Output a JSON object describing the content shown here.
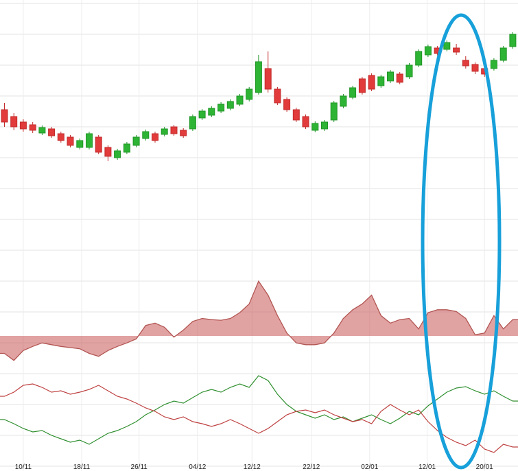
{
  "colors": {
    "background": "#ffffff",
    "grid": "#e3e3e3",
    "grid_vertical": "#ececec",
    "candle_up_fill": "#2eb434",
    "candle_up_stroke": "#1f9426",
    "candle_down_fill": "#e23b3b",
    "candle_down_stroke": "#c12b2b",
    "hist_fill": "rgba(200,85,85,0.55)",
    "hist_stroke": "#b25653",
    "osc_green": "#2f8f2f",
    "osc_red": "#bf4040",
    "annotation": "#17a0da",
    "axis_text": "#222222"
  },
  "chart_data": {
    "type": "candlestick-multi-pane",
    "title": "",
    "grid": true,
    "x_axis": {
      "tick_labels": [
        "10/11",
        "18/11",
        "26/11",
        "04/12",
        "12/12",
        "22/12",
        "02/01",
        "12/01",
        "20/01"
      ],
      "tick_candle_indices": [
        2,
        8.2,
        14.3,
        20.5,
        26.3,
        32.6,
        38.8,
        44.9,
        51
      ]
    },
    "panes": [
      {
        "name": "price",
        "type": "candlestick",
        "value_units": "relative (no visible price axis)",
        "value_range": [
          0,
          100
        ],
        "candles": [
          [
            60,
            62.5,
            53.75,
            55.5
          ],
          [
            57.5,
            58.75,
            52.5,
            53.75
          ],
          [
            55.5,
            56.5,
            52,
            53
          ],
          [
            54.5,
            55.5,
            51.5,
            52.5
          ],
          [
            51.5,
            54.25,
            50.75,
            53.5
          ],
          [
            53,
            53.75,
            49.75,
            50.5
          ],
          [
            51.25,
            52,
            48,
            48.75
          ],
          [
            50,
            50.75,
            46.25,
            47
          ],
          [
            46.25,
            49.5,
            45.5,
            48.75
          ],
          [
            46.25,
            52,
            45.5,
            51.25
          ],
          [
            50,
            50.75,
            43.75,
            44.5
          ],
          [
            46.25,
            47,
            41.25,
            43
          ],
          [
            42.5,
            45.75,
            41.75,
            45
          ],
          [
            44.5,
            48.25,
            43.75,
            47.5
          ],
          [
            47,
            50.75,
            46.25,
            50
          ],
          [
            49.5,
            52.75,
            48.75,
            52
          ],
          [
            51.25,
            52,
            48,
            48.75
          ],
          [
            51,
            53.75,
            50.25,
            53
          ],
          [
            53.75,
            54.5,
            50.5,
            51.25
          ],
          [
            52.5,
            53.25,
            49.75,
            50.5
          ],
          [
            53,
            58.25,
            52.25,
            57.5
          ],
          [
            57,
            60.25,
            56.25,
            59.5
          ],
          [
            58,
            61.25,
            57.25,
            60.5
          ],
          [
            59.5,
            62.75,
            58.75,
            62
          ],
          [
            60.5,
            63.75,
            59.75,
            63
          ],
          [
            62,
            65.75,
            61.25,
            65
          ],
          [
            63.75,
            68.25,
            63,
            67.5
          ],
          [
            66.25,
            80,
            65.5,
            77.5
          ],
          [
            75,
            81.25,
            66.25,
            67.5
          ],
          [
            67.5,
            68.25,
            61.75,
            62.5
          ],
          [
            63.75,
            64.5,
            59.25,
            60
          ],
          [
            60,
            60.75,
            55.5,
            56.25
          ],
          [
            57.5,
            58.25,
            53,
            53.75
          ],
          [
            52.5,
            55.75,
            51.75,
            55
          ],
          [
            53,
            56.25,
            52.25,
            55.5
          ],
          [
            56.25,
            63.25,
            55.5,
            62.5
          ],
          [
            61.25,
            65.75,
            60.5,
            65
          ],
          [
            64.5,
            68.75,
            63.75,
            68
          ],
          [
            71.25,
            72,
            65.5,
            66.25
          ],
          [
            72.5,
            73.25,
            66.75,
            67.5
          ],
          [
            68.75,
            72.75,
            68,
            72
          ],
          [
            70.5,
            74.5,
            69.75,
            73.75
          ],
          [
            73,
            73.75,
            69.25,
            70
          ],
          [
            72,
            77,
            71.25,
            76.25
          ],
          [
            76.25,
            82,
            75.5,
            81.25
          ],
          [
            80,
            83.75,
            79.25,
            83
          ],
          [
            82.5,
            83.25,
            79.75,
            80.5
          ],
          [
            82,
            85.25,
            81.25,
            84.5
          ],
          [
            82.5,
            84,
            80,
            81
          ],
          [
            78,
            79.5,
            75,
            76
          ],
          [
            76.5,
            77.25,
            73,
            74
          ],
          [
            75,
            76,
            72,
            73
          ],
          [
            75,
            78.75,
            74.25,
            78
          ],
          [
            78,
            83.25,
            77.25,
            82.5
          ],
          [
            83,
            88.25,
            82.25,
            87.5
          ]
        ]
      },
      {
        "name": "histogram",
        "type": "area",
        "baseline": 0,
        "value_units": "relative",
        "value_range": [
          -0.5,
          1
        ],
        "values": [
          -0.3,
          -0.42,
          -0.25,
          -0.18,
          -0.12,
          -0.15,
          -0.18,
          -0.2,
          -0.22,
          -0.3,
          -0.35,
          -0.25,
          -0.18,
          -0.12,
          -0.05,
          0.18,
          0.22,
          0.15,
          -0.02,
          0.1,
          0.25,
          0.3,
          0.28,
          0.27,
          0.3,
          0.4,
          0.55,
          0.94,
          0.7,
          0.35,
          0.05,
          -0.12,
          -0.15,
          -0.15,
          -0.12,
          0.05,
          0.3,
          0.45,
          0.55,
          0.7,
          0.35,
          0.22,
          0.28,
          0.3,
          0.12,
          0.4,
          0.45,
          0.45,
          0.42,
          0.3,
          0.02,
          0.05,
          0.35,
          0.12,
          0.28
        ]
      },
      {
        "name": "oscillator",
        "type": "line",
        "value_units": "relative",
        "value_range": [
          0,
          145
        ],
        "series": [
          {
            "name": "green",
            "color_key": "osc_green",
            "values": [
              75,
              69,
              62,
              57,
              59,
              52,
              47,
              42,
              45,
              39,
              47,
              55,
              59,
              65,
              72,
              82,
              89,
              97,
              102,
              99,
              107,
              115,
              119,
              115,
              122,
              127,
              122,
              139,
              132,
              112,
              97,
              87,
              82,
              77,
              82,
              75,
              79,
              72,
              77,
              82,
              75,
              69,
              77,
              87,
              82,
              95,
              105,
              115,
              121,
              123,
              117,
              112,
              117,
              109,
              102
            ]
          },
          {
            "name": "red",
            "color_key": "osc_red",
            "values": [
              109,
              115,
              125,
              127,
              122,
              115,
              117,
              112,
              115,
              119,
              125,
              117,
              109,
              105,
              99,
              92,
              87,
              79,
              75,
              79,
              72,
              69,
              65,
              69,
              75,
              69,
              62,
              55,
              62,
              72,
              82,
              87,
              89,
              85,
              89,
              82,
              77,
              72,
              75,
              69,
              87,
              97,
              89,
              82,
              89,
              72,
              59,
              49,
              42,
              37,
              45,
              32,
              27,
              39,
              35
            ]
          }
        ]
      }
    ],
    "annotation": {
      "shape": "ellipse",
      "color_key": "annotation",
      "center_candle_index": 49
    }
  }
}
